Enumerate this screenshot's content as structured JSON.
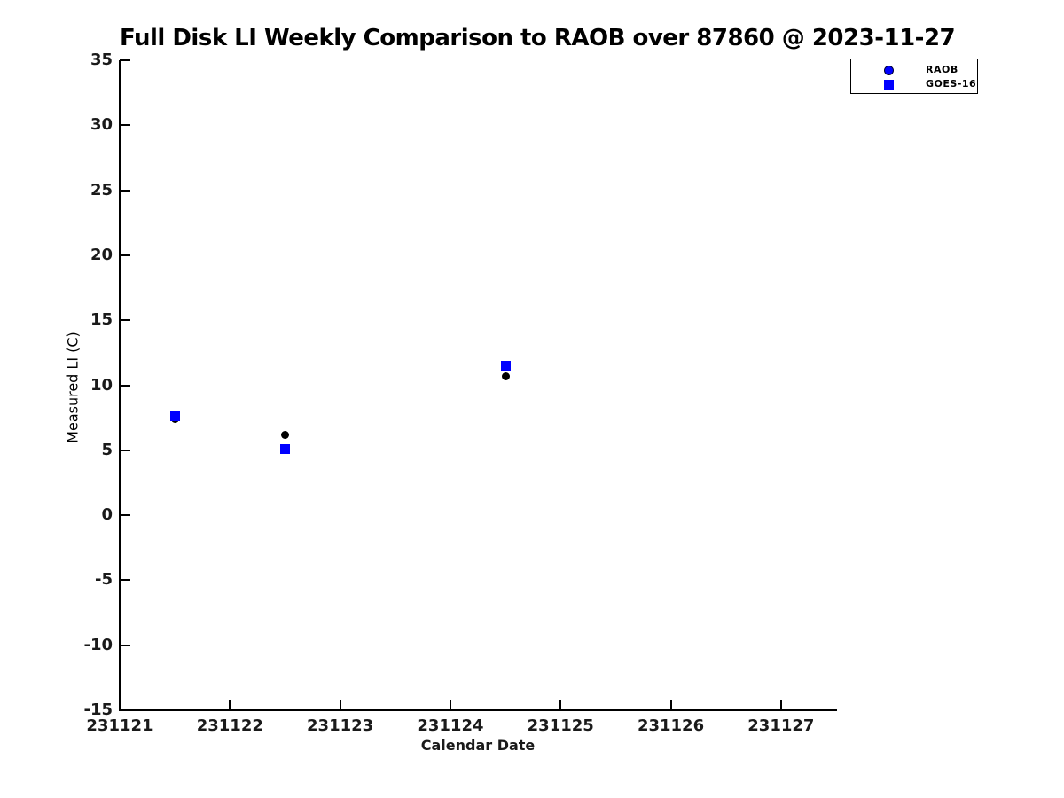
{
  "figure": {
    "title": "Full Disk LI Weekly Comparison to RAOB over 87860 @ 2023-11-27"
  },
  "chart_data": {
    "type": "scatter",
    "title": "Full Disk LI Weekly Comparison to RAOB over 87860 @ 2023-11-27",
    "xlabel": "Calendar Date",
    "ylabel": "Measured LI (C)",
    "xlim": [
      231121,
      231127.5
    ],
    "ylim": [
      -15,
      35
    ],
    "xticks": [
      231121,
      231122,
      231123,
      231124,
      231125,
      231126,
      231127
    ],
    "yticks": [
      -15,
      -10,
      -5,
      0,
      5,
      10,
      15,
      20,
      25,
      30,
      35
    ],
    "grid": false,
    "legend": {
      "position": "top-right",
      "entries": [
        "RAOB",
        "GOES-16"
      ]
    },
    "x": [
      231121.5,
      231122.5,
      231124.5
    ],
    "series": [
      {
        "name": "RAOB",
        "marker": "circle",
        "plot_color": "#000000",
        "legend_color": "#0000ff",
        "values": [
          7.4,
          6.2,
          10.7
        ]
      },
      {
        "name": "GOES-16",
        "marker": "square",
        "plot_color": "#0000ff",
        "legend_color": "#0000ff",
        "values": [
          7.6,
          5.1,
          11.5
        ]
      }
    ]
  },
  "colors": {
    "accent_blue": "#0000ff",
    "axis": "#000000",
    "tick_label": "#1a1a1a",
    "background": "#ffffff"
  }
}
